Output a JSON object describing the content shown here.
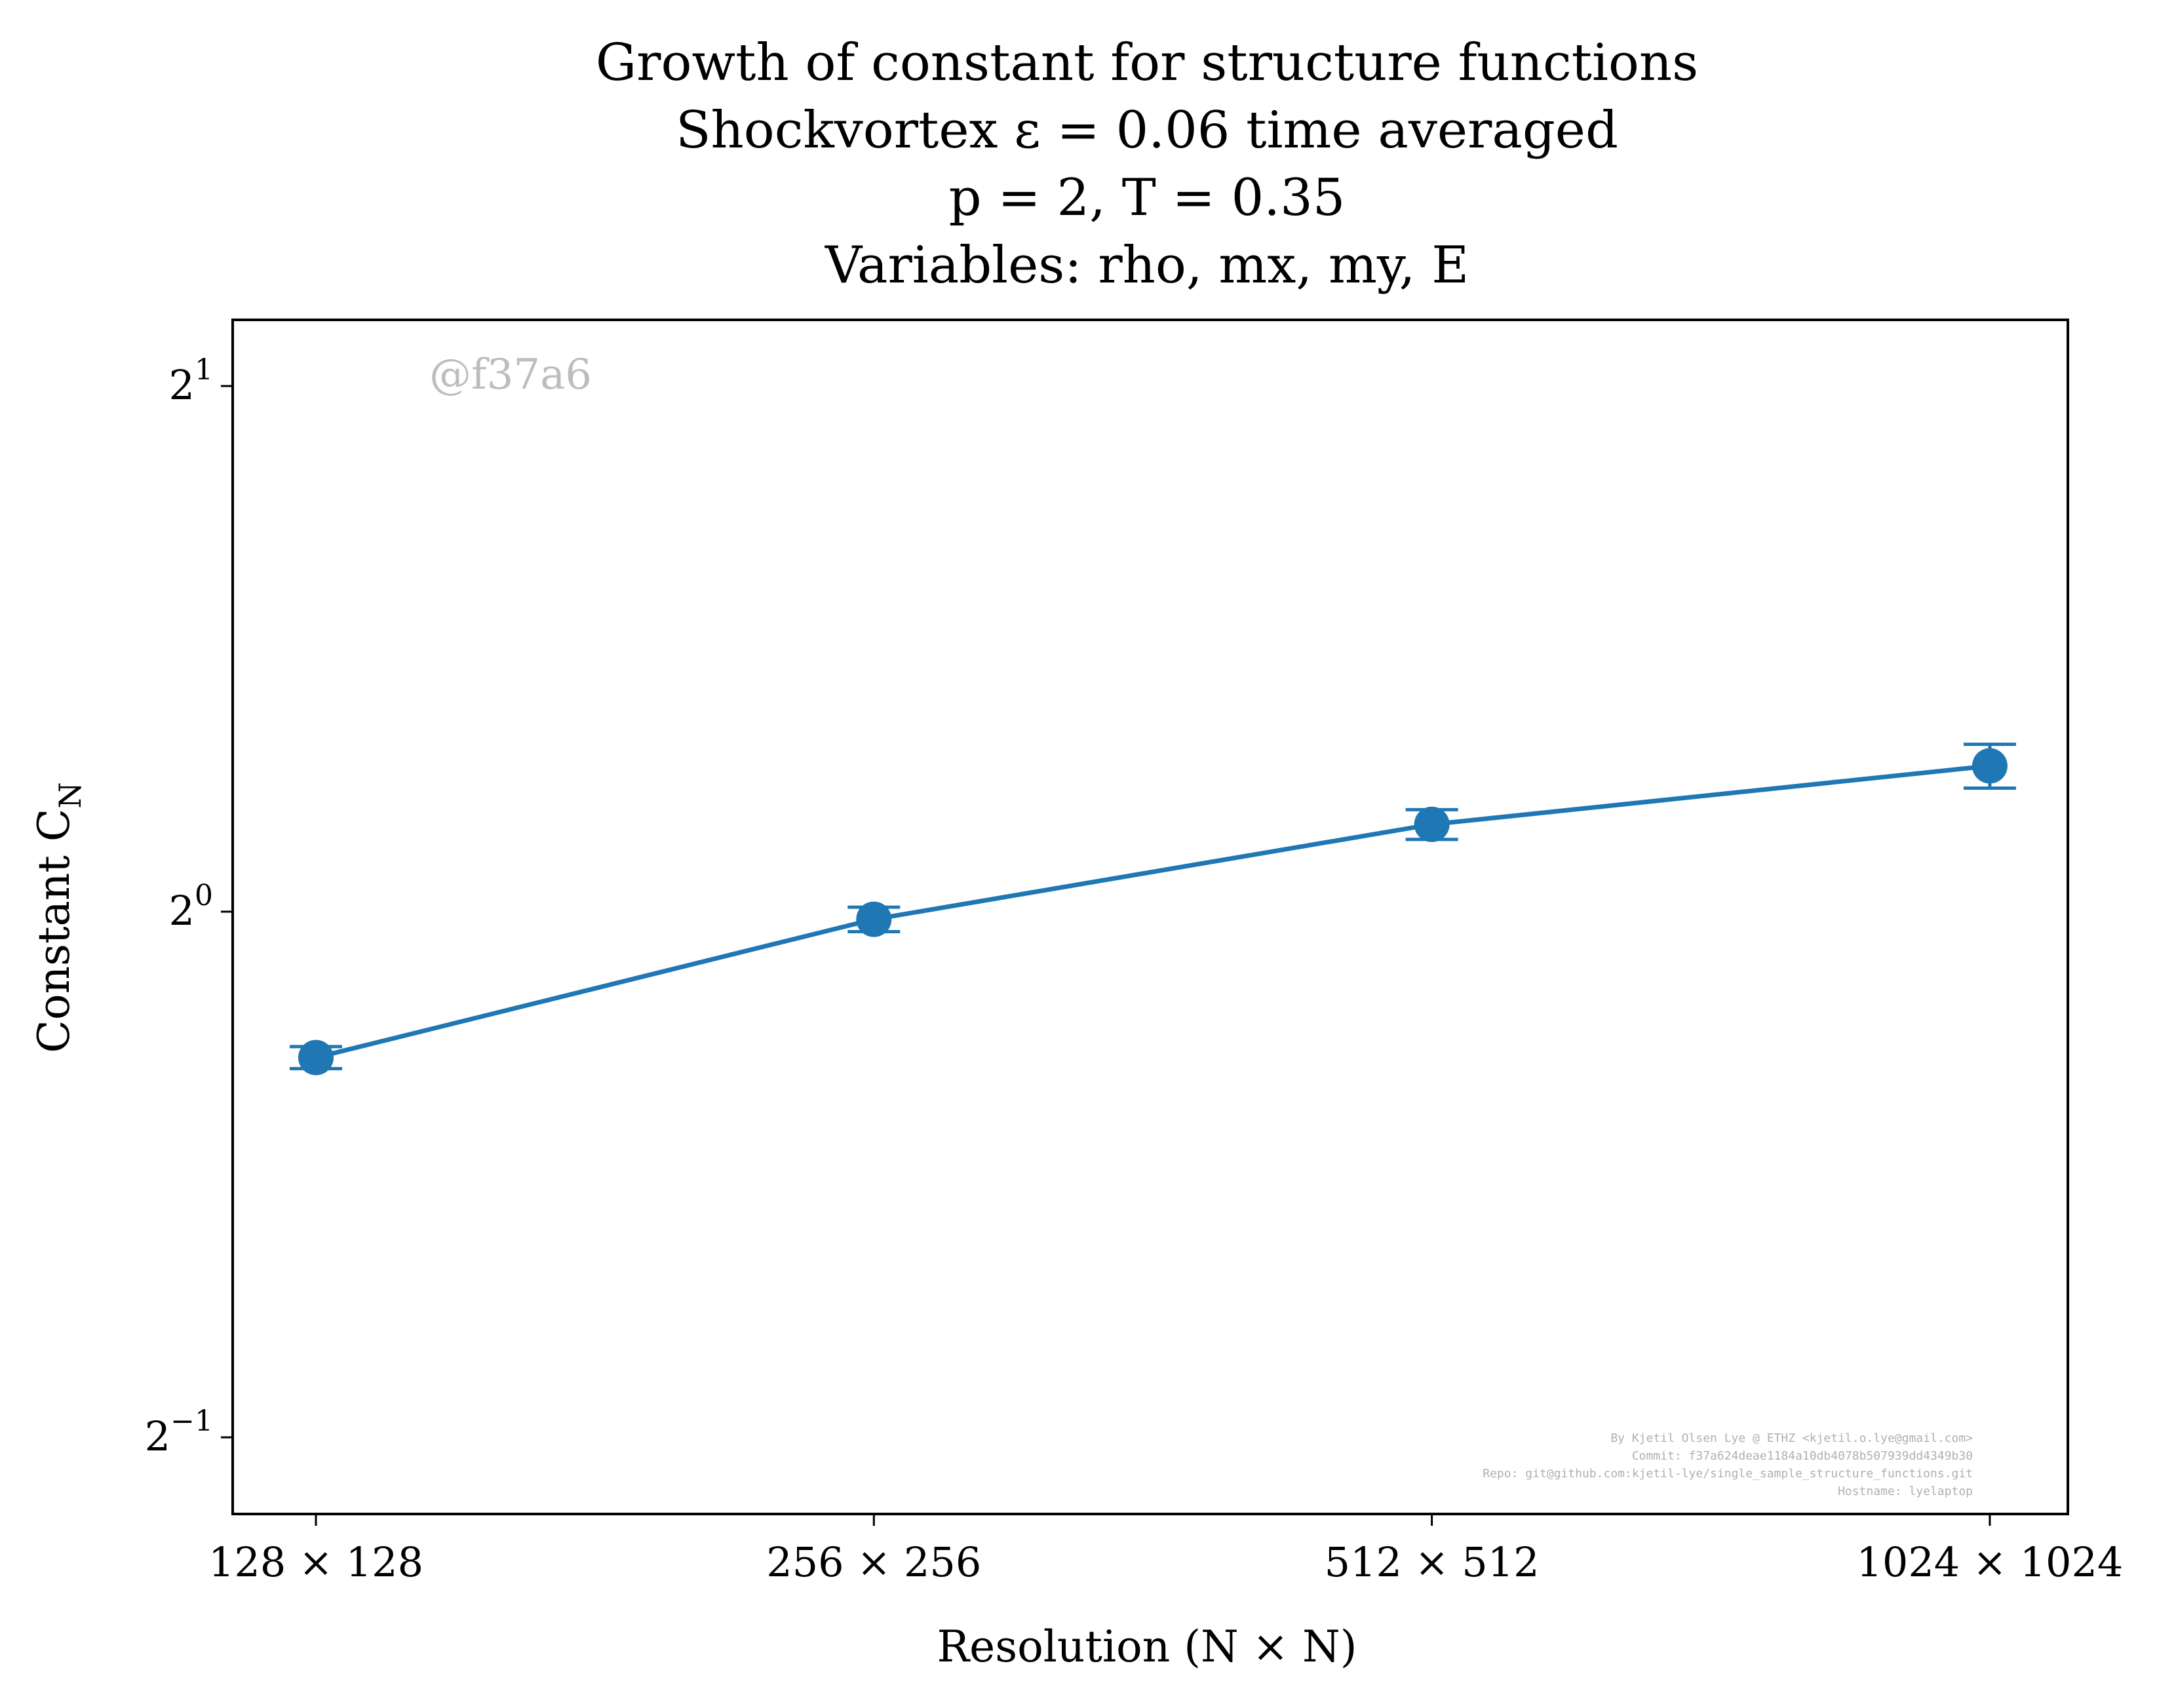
{
  "chart_data": {
    "type": "line",
    "title_lines": [
      "Growth of constant for structure functions",
      "Shockvortex ε = 0.06 time averaged",
      "p = 2, T = 0.35",
      "Variables: rho, mx, my, E"
    ],
    "xlabel": "Resolution (N × N)",
    "ylabel": "Constant C",
    "ylabel_subscript": "N",
    "categories": [
      "128 × 128",
      "256 × 256",
      "512 × 512",
      "1024 × 1024"
    ],
    "y_scale": "log2",
    "ylim": [
      0.43,
      2.22
    ],
    "y_ticks": [
      {
        "value": 0.5,
        "base": "2",
        "exp": "−1"
      },
      {
        "value": 1,
        "base": "2",
        "exp": "0"
      },
      {
        "value": 2,
        "base": "2",
        "exp": "1"
      }
    ],
    "grid": false,
    "series": [
      {
        "values": [
          0.825,
          0.99,
          1.122,
          1.212
        ],
        "errors": [
          0.012,
          0.016,
          0.022,
          0.035
        ],
        "color": "#1f77b4",
        "marker": "circle"
      }
    ],
    "watermark": "@f37a6",
    "credit_lines": [
      "By Kjetil Olsen Lye @ ETHZ <kjetil.o.lye@gmail.com>",
      "Commit: f37a624deae1184a10db4078b507939dd4349b30",
      "Repo: git@github.com:kjetil-lye/single_sample_structure_functions.git",
      "Hostname: lyelaptop"
    ]
  }
}
